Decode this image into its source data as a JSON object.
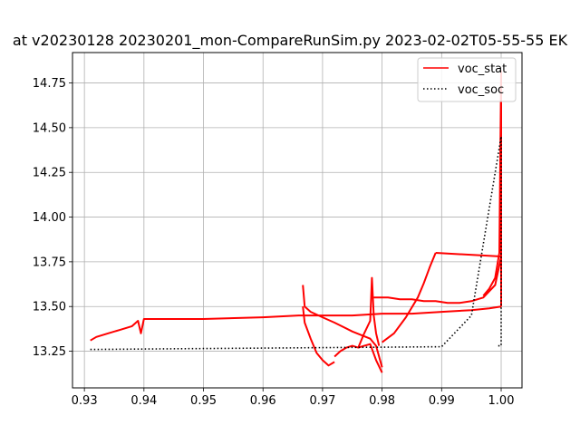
{
  "chart_data": {
    "type": "line",
    "title": "at v20230128 20230201_mon-CompareRunSim.py   2023-02-02T05-55-55 EK",
    "xlabel": "",
    "ylabel": "",
    "xlim": [
      0.928,
      1.0035
    ],
    "ylim": [
      13.045,
      14.92
    ],
    "grid": true,
    "legend_position": "top-right",
    "x_ticks": [
      0.93,
      0.94,
      0.95,
      0.96,
      0.97,
      0.98,
      0.99,
      1.0
    ],
    "x_tick_labels": [
      "0.93",
      "0.94",
      "0.95",
      "0.96",
      "0.97",
      "0.98",
      "0.99",
      "1.00"
    ],
    "y_ticks": [
      13.25,
      13.5,
      13.75,
      14.0,
      14.25,
      14.5,
      14.75
    ],
    "y_tick_labels": [
      "13.25",
      "13.50",
      "13.75",
      "14.00",
      "14.25",
      "14.50",
      "14.75"
    ],
    "series": [
      {
        "name": "voc_stat",
        "color": "#ff0000",
        "style": "solid",
        "segments": [
          {
            "x": [
              0.931,
              0.932,
              0.934,
              0.936,
              0.938,
              0.939,
              0.9395,
              0.94,
              0.95,
              0.96,
              0.966,
              0.97,
              0.975,
              0.98,
              0.985,
              0.99,
              0.995,
              0.998,
              1.0
            ],
            "y": [
              13.31,
              13.33,
              13.35,
              13.37,
              13.39,
              13.42,
              13.35,
              13.43,
              13.43,
              13.44,
              13.45,
              13.45,
              13.45,
              13.46,
              13.46,
              13.47,
              13.48,
              13.49,
              13.5
            ]
          },
          {
            "x": [
              0.9667,
              0.967,
              0.968,
              0.97,
              0.972,
              0.975,
              0.978,
              0.979,
              0.98
            ],
            "y": [
              13.62,
              13.5,
              13.47,
              13.44,
              13.41,
              13.36,
              13.32,
              13.28,
              13.16
            ]
          },
          {
            "x": [
              0.9667,
              0.967,
              0.968,
              0.969,
              0.97,
              0.971,
              0.972
            ],
            "y": [
              13.5,
              13.41,
              13.32,
              13.24,
              13.2,
              13.17,
              13.19
            ]
          },
          {
            "x": [
              0.972,
              0.973,
              0.974,
              0.975,
              0.976,
              0.977,
              0.978,
              0.979,
              0.98
            ],
            "y": [
              13.22,
              13.25,
              13.27,
              13.28,
              13.27,
              13.28,
              13.29,
              13.2,
              13.13
            ]
          },
          {
            "x": [
              0.976,
              0.977,
              0.978,
              0.9783,
              0.9786,
              0.979,
              0.9795
            ],
            "y": [
              13.27,
              13.35,
              13.42,
              13.66,
              13.45,
              13.35,
              13.28
            ]
          },
          {
            "x": [
              0.9786,
              0.981,
              0.983,
              0.985,
              0.987,
              0.989,
              0.991,
              0.993,
              0.995,
              0.997,
              0.999,
              1.0
            ],
            "y": [
              13.55,
              13.55,
              13.54,
              13.54,
              13.53,
              13.53,
              13.52,
              13.52,
              13.53,
              13.55,
              13.62,
              13.78
            ]
          },
          {
            "x": [
              0.98,
              0.982,
              0.984,
              0.986,
              0.987,
              0.988,
              0.989
            ],
            "y": [
              13.3,
              13.35,
              13.44,
              13.55,
              13.63,
              13.72,
              13.8
            ]
          },
          {
            "x": [
              0.989,
              1.0
            ],
            "y": [
              13.8,
              13.78
            ]
          },
          {
            "x": [
              0.997,
              0.998,
              0.999,
              0.9997,
              1.0
            ],
            "y": [
              13.56,
              13.6,
              13.66,
              13.8,
              14.82
            ]
          },
          {
            "x": [
              1.0,
              1.0
            ],
            "y": [
              13.5,
              14.82
            ]
          }
        ]
      },
      {
        "name": "voc_soc",
        "color": "#000000",
        "style": "dotted",
        "segments": [
          {
            "x": [
              0.931,
              0.95,
              0.97,
              0.99,
              0.995,
              1.0,
              1.0,
              0.9995
            ],
            "y": [
              13.26,
              13.265,
              13.27,
              13.275,
              13.45,
              14.45,
              13.28,
              13.28
            ]
          }
        ]
      }
    ]
  }
}
